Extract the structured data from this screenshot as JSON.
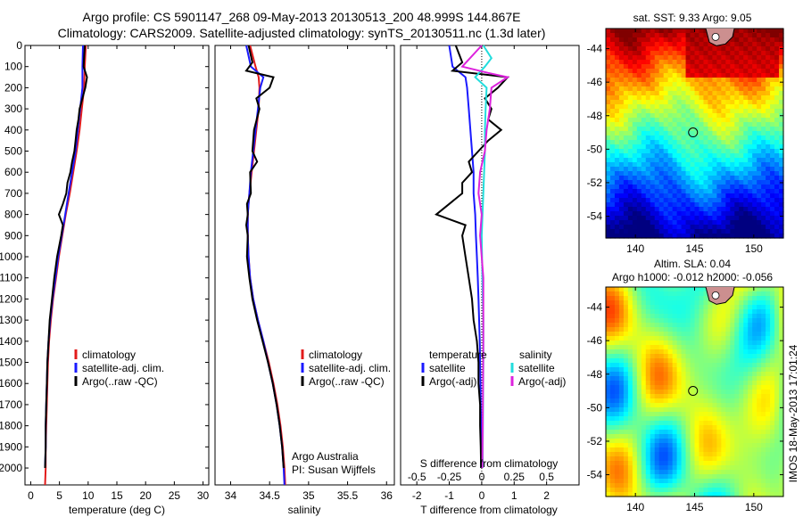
{
  "figure": {
    "title_line1": "Argo profile: CS 5901147_268 09-May-2013 20130513_200 48.999S 144.867E",
    "title_line2": "Climatology: CARS2009. Satellite-adjusted climatology: synTS_20130511.nc (1.3d later)",
    "credit_line1": "Argo Australia",
    "credit_line2": "PI: Susan Wijffels",
    "timestamp": "IMOS 18-May-2013 17:01:24",
    "colors": {
      "climatology": "#e21b1b",
      "satellite": "#1a1aff",
      "argo": "#000000",
      "sal_sat": "#22dddd",
      "sal_argo": "#dd22dd"
    }
  },
  "chart_data": [
    {
      "type": "line",
      "panel": "temperature",
      "xlabel": "temperature (deg C)",
      "ylim": [
        2080,
        0
      ],
      "xlim": [
        -1,
        31
      ],
      "xticks": [
        0,
        5,
        10,
        15,
        20,
        25,
        30
      ],
      "yticks": [
        0,
        100,
        200,
        300,
        400,
        500,
        600,
        700,
        800,
        900,
        1000,
        1100,
        1200,
        1300,
        1400,
        1500,
        1600,
        1700,
        1800,
        1900,
        2000
      ],
      "legend": [
        "climatology",
        "satellite-adj. clim.",
        "Argo(..raw -QC)"
      ],
      "series": [
        {
          "name": "climatology",
          "depth": [
            0,
            100,
            200,
            300,
            400,
            500,
            600,
            700,
            800,
            900,
            1000,
            1100,
            1200,
            1300,
            1400,
            1500,
            1600,
            1700,
            1800,
            1900,
            2000,
            2080
          ],
          "values": [
            9.6,
            9.4,
            9.3,
            8.9,
            8.5,
            8.0,
            7.4,
            6.8,
            6.1,
            5.5,
            4.9,
            4.4,
            3.9,
            3.5,
            3.2,
            3.0,
            2.9,
            2.8,
            2.7,
            2.6,
            2.6,
            2.5
          ]
        },
        {
          "name": "satellite-adj. clim.",
          "depth": [
            0,
            100,
            200,
            300,
            400,
            500,
            600,
            700,
            800,
            900,
            1000,
            1100,
            1200,
            1300,
            1400,
            1500,
            1600,
            1700,
            1800,
            1900,
            2000
          ],
          "values": [
            9.1,
            9.0,
            9.0,
            8.6,
            8.2,
            7.8,
            7.2,
            6.6,
            6.0,
            5.4,
            4.8,
            4.3,
            3.8,
            3.4,
            3.1,
            2.9,
            2.8,
            2.7,
            2.6,
            2.6,
            2.5
          ]
        },
        {
          "name": "Argo(..raw -QC)",
          "depth": [
            0,
            50,
            100,
            150,
            200,
            250,
            300,
            350,
            400,
            450,
            500,
            550,
            600,
            650,
            700,
            750,
            800,
            850,
            900,
            1000,
            1100,
            1200,
            1300,
            1400,
            1500,
            1600,
            1700,
            1800,
            1900,
            2000
          ],
          "values": [
            9.4,
            9.3,
            9.2,
            9.8,
            9.5,
            9.0,
            8.5,
            8.3,
            8.0,
            7.8,
            7.6,
            7.2,
            6.9,
            6.4,
            6.2,
            5.6,
            4.9,
            5.6,
            5.3,
            4.6,
            4.1,
            3.7,
            3.3,
            3.1,
            2.9,
            2.8,
            2.7,
            2.6,
            2.6,
            2.5
          ]
        }
      ]
    },
    {
      "type": "line",
      "panel": "salinity",
      "xlabel": "salinity",
      "ylim": [
        2080,
        0
      ],
      "xlim": [
        33.8,
        36.1
      ],
      "xticks": [
        34,
        34.5,
        35,
        35.5,
        36
      ],
      "legend": [
        "climatology",
        "satellite-adj. clim.",
        "Argo(..raw -QC)"
      ],
      "series": [
        {
          "name": "climatology",
          "depth": [
            0,
            100,
            150,
            200,
            300,
            400,
            500,
            600,
            700,
            800,
            900,
            1000,
            1100,
            1200,
            1300,
            1400,
            1500,
            1600,
            1700,
            1800,
            1900,
            2000,
            2080
          ],
          "values": [
            34.25,
            34.32,
            34.36,
            34.37,
            34.36,
            34.33,
            34.3,
            34.27,
            34.24,
            34.22,
            34.22,
            34.23,
            34.25,
            34.29,
            34.35,
            34.42,
            34.49,
            34.55,
            34.6,
            34.64,
            34.67,
            34.69,
            34.7
          ]
        },
        {
          "name": "satellite-adj. clim.",
          "depth": [
            0,
            100,
            150,
            200,
            300,
            400,
            500,
            600,
            700,
            800,
            900,
            1000,
            1100,
            1200,
            1300,
            1400,
            1500,
            1600,
            1700,
            1800,
            1900,
            2000,
            2080
          ],
          "values": [
            34.2,
            34.26,
            34.42,
            34.38,
            34.35,
            34.32,
            34.29,
            34.26,
            34.24,
            34.22,
            34.22,
            34.23,
            34.25,
            34.29,
            34.35,
            34.42,
            34.48,
            34.54,
            34.59,
            34.63,
            34.66,
            34.68,
            34.69
          ]
        },
        {
          "name": "Argo(..raw -QC)",
          "depth": [
            0,
            80,
            120,
            150,
            200,
            250,
            300,
            400,
            500,
            550,
            600,
            700,
            750,
            800,
            850,
            900,
            1000,
            1100,
            1200,
            1300,
            1400,
            1500,
            1600,
            1700,
            1800,
            1900,
            2000
          ],
          "values": [
            34.23,
            34.28,
            34.2,
            34.55,
            34.5,
            34.33,
            34.37,
            34.3,
            34.28,
            34.34,
            34.25,
            34.26,
            34.21,
            34.22,
            34.2,
            34.22,
            34.21,
            34.24,
            34.28,
            34.34,
            34.41,
            34.48,
            34.54,
            34.59,
            34.63,
            34.66,
            34.68
          ]
        }
      ]
    },
    {
      "type": "line",
      "panel": "difference",
      "xlabel": "T difference from climatology",
      "xlabel_top": "S difference from climatology",
      "ylim": [
        2080,
        0
      ],
      "xlim": [
        -2.5,
        3
      ],
      "xticks": [
        -2,
        -1,
        0,
        1,
        2
      ],
      "sticks_labels": [
        "-0.5",
        "-0.25",
        "0",
        "0.25",
        "0.5"
      ],
      "sticks_t_positions": [
        -2,
        -1,
        0,
        1,
        2
      ],
      "legend_temperature_title": "temperature",
      "legend_salinity_title": "salinity",
      "legend": [
        "satellite",
        "Argo(-adj)",
        "satellite",
        "Argo(-adj)"
      ],
      "series": [
        {
          "name": "satellite",
          "group": "temperature",
          "depth": [
            0,
            100,
            150,
            200,
            300,
            400,
            500,
            600,
            700,
            800,
            900,
            1000,
            1100,
            1200,
            1300,
            1400,
            1500,
            1600,
            1700,
            1800,
            1900,
            2000
          ],
          "values": [
            -1.0,
            -0.9,
            -0.5,
            -0.45,
            -0.4,
            -0.35,
            -0.3,
            -0.25,
            -0.25,
            -0.2,
            -0.18,
            -0.15,
            -0.12,
            -0.1,
            -0.08,
            -0.06,
            -0.05,
            -0.04,
            -0.03,
            -0.02,
            -0.02,
            -0.02
          ]
        },
        {
          "name": "Argo(-adj)",
          "group": "temperature",
          "depth": [
            0,
            80,
            120,
            150,
            200,
            250,
            300,
            350,
            400,
            450,
            500,
            550,
            600,
            650,
            700,
            750,
            800,
            850,
            900,
            1000,
            1100,
            1200,
            1300,
            1400,
            1500,
            1600,
            1700,
            1800,
            1900,
            2000
          ],
          "values": [
            -0.8,
            -0.6,
            -0.9,
            0.8,
            0.5,
            0.1,
            0.3,
            0.2,
            0.6,
            0.2,
            -0.1,
            -0.4,
            -0.3,
            -0.6,
            -0.6,
            -1.0,
            -1.4,
            -0.5,
            -0.6,
            -0.5,
            -0.4,
            -0.3,
            -0.25,
            -0.15,
            -0.1,
            -0.1,
            -0.05,
            -0.05,
            -0.03,
            -0.02
          ]
        },
        {
          "name": "satellite",
          "group": "salinity",
          "depth": [
            0,
            60,
            100,
            150,
            200,
            300,
            400,
            500,
            700,
            900,
            1100,
            1300,
            1500,
            1700,
            1900,
            2000
          ],
          "values": [
            0.05,
            0.3,
            0.1,
            -0.2,
            0.15,
            0.12,
            0.1,
            0.1,
            0.05,
            0.0,
            0.02,
            0.05,
            0.05,
            0.04,
            0.03,
            0.03
          ]
        },
        {
          "name": "Argo(-adj)",
          "group": "salinity",
          "depth": [
            0,
            100,
            130,
            150,
            200,
            300,
            400,
            500,
            600,
            700,
            800,
            900,
            1000,
            1100,
            1200,
            1400,
            1600,
            1800,
            2000
          ],
          "values": [
            0.0,
            -0.6,
            0.2,
            0.8,
            0.3,
            0.25,
            0.15,
            0.1,
            -0.05,
            -0.1,
            0.0,
            -0.05,
            0.0,
            0.05,
            0.05,
            0.05,
            0.04,
            0.03,
            0.02
          ]
        }
      ]
    },
    {
      "type": "heatmap",
      "panel": "sst_map",
      "title": "sat. SST: 9.33 Argo: 9.05",
      "xticks": [
        140,
        145,
        150
      ],
      "yticks": [
        -44,
        -46,
        -48,
        -50,
        -52,
        -54
      ],
      "xlim": [
        137.5,
        152.5
      ],
      "ylim": [
        -55.3,
        -42.8
      ],
      "marker": {
        "lon": 144.867,
        "lat": -48.999
      }
    },
    {
      "type": "heatmap",
      "panel": "sla_map",
      "title_line1": "Altim. SLA: 0.04",
      "title_line2": "Argo h1000: -0.012 h2000: -0.056",
      "xticks": [
        140,
        145,
        150
      ],
      "yticks": [
        -44,
        -46,
        -48,
        -50,
        -52,
        -54
      ],
      "xlim": [
        137.5,
        152.5
      ],
      "ylim": [
        -55.3,
        -42.8
      ],
      "marker": {
        "lon": 144.867,
        "lat": -48.999
      }
    }
  ]
}
